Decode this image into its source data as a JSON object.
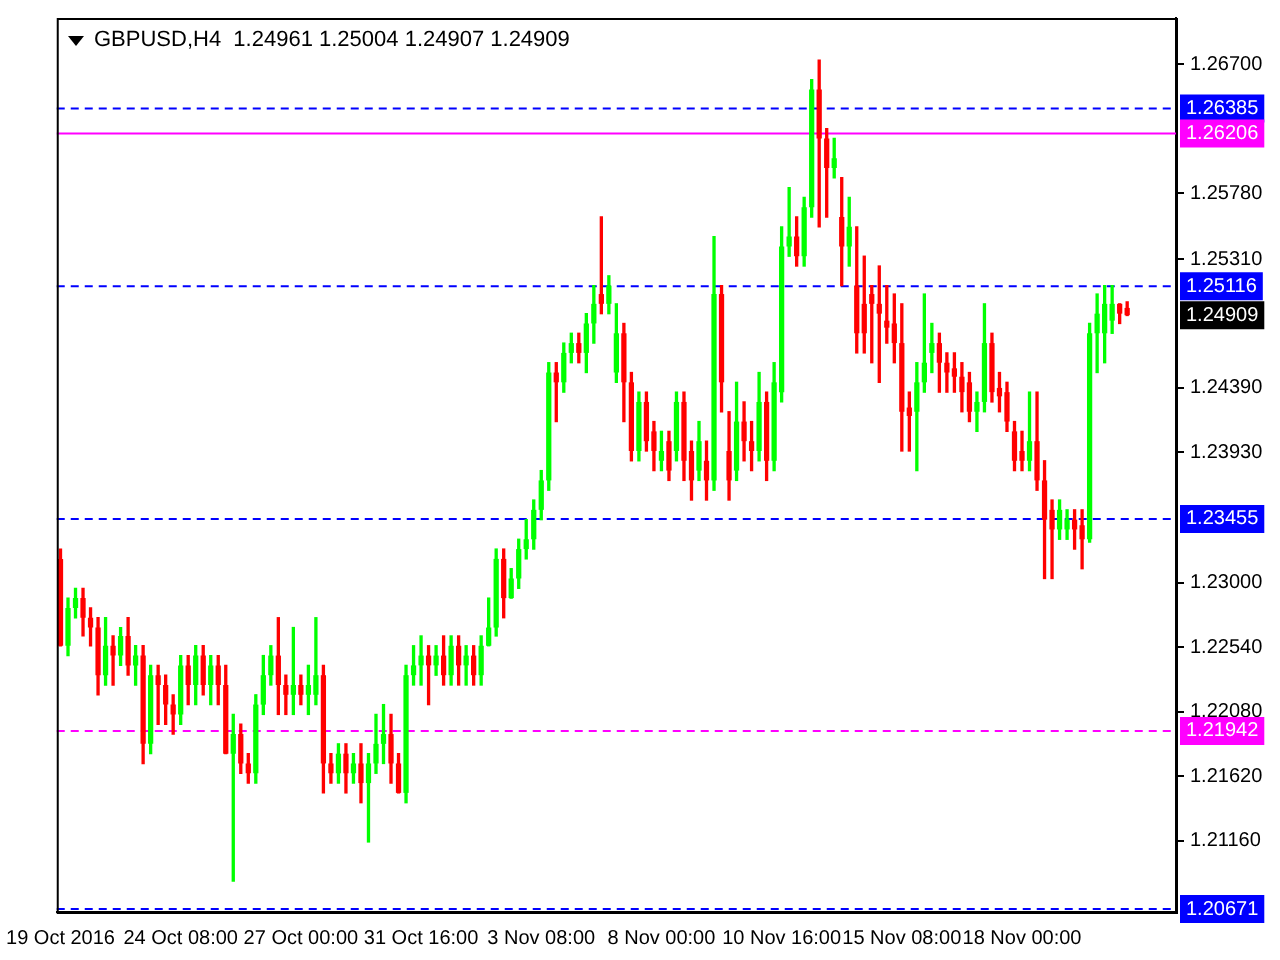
{
  "chart_data": {
    "type": "candlestick",
    "title": "GBPUSD,H4  1.24961 1.25004 1.24907 1.24909",
    "categories": [
      "19 Oct 2016",
      null,
      null,
      null,
      null,
      null,
      null,
      null,
      null,
      null,
      null,
      null,
      null,
      null,
      null,
      null,
      "24 Oct 08:00",
      null,
      null,
      null,
      null,
      null,
      null,
      null,
      null,
      null,
      null,
      null,
      null,
      null,
      null,
      null,
      "27 Oct 00:00",
      null,
      null,
      null,
      null,
      null,
      null,
      null,
      null,
      null,
      null,
      null,
      null,
      null,
      null,
      null,
      "31 Oct 16:00",
      null,
      null,
      null,
      null,
      null,
      null,
      null,
      null,
      null,
      null,
      null,
      null,
      null,
      null,
      null,
      "3 Nov 08:00",
      null,
      null,
      null,
      null,
      null,
      null,
      null,
      null,
      null,
      null,
      null,
      null,
      null,
      null,
      null,
      "8 Nov 00:00",
      null,
      null,
      null,
      null,
      null,
      null,
      null,
      null,
      null,
      null,
      null,
      null,
      null,
      null,
      null,
      "10 Nov 16:00",
      null,
      null,
      null,
      null,
      null,
      null,
      null,
      null,
      null,
      null,
      null,
      null,
      null,
      null,
      null,
      "15 Nov 08:00",
      null,
      null,
      null,
      null,
      null,
      null,
      null,
      null,
      null,
      null,
      null,
      null,
      null,
      null,
      null,
      "18 Nov 00:00",
      null,
      null,
      null,
      null,
      null,
      null,
      null,
      null,
      null,
      null,
      null,
      null,
      null,
      null,
      null,
      null,
      null,
      null,
      null,
      null
    ],
    "ohlc": [
      [
        1.2317,
        1.2324,
        1.2255,
        1.2255
      ],
      [
        1.2255,
        1.2289,
        1.2248,
        1.2282
      ],
      [
        1.2282,
        1.2296,
        1.2275,
        1.2289
      ],
      [
        1.2289,
        1.2296,
        1.2262,
        1.2275
      ],
      [
        1.2275,
        1.2282,
        1.2255,
        1.2268
      ],
      [
        1.2268,
        1.2275,
        1.222,
        1.2234
      ],
      [
        1.2234,
        1.2275,
        1.2227,
        1.2255
      ],
      [
        1.2255,
        1.2262,
        1.2227,
        1.2248
      ],
      [
        1.2248,
        1.2268,
        1.2241,
        1.2262
      ],
      [
        1.2262,
        1.2275,
        1.2234,
        1.2241
      ],
      [
        1.2241,
        1.2255,
        1.2227,
        1.2248
      ],
      [
        1.2248,
        1.2255,
        1.2171,
        1.2185
      ],
      [
        1.2185,
        1.2241,
        1.2178,
        1.2234
      ],
      [
        1.2234,
        1.2241,
        1.2199,
        1.2227
      ],
      [
        1.2227,
        1.2234,
        1.2199,
        1.2213
      ],
      [
        1.2213,
        1.222,
        1.2192,
        1.2206
      ],
      [
        1.2206,
        1.2248,
        1.2199,
        1.2241
      ],
      [
        1.2241,
        1.2248,
        1.2213,
        1.2227
      ],
      [
        1.2227,
        1.2255,
        1.2213,
        1.2248
      ],
      [
        1.2248,
        1.2255,
        1.222,
        1.2227
      ],
      [
        1.2227,
        1.2248,
        1.2213,
        1.2241
      ],
      [
        1.2241,
        1.2248,
        1.2213,
        1.2227
      ],
      [
        1.2227,
        1.2241,
        1.2178,
        1.2178
      ],
      [
        1.2178,
        1.2206,
        1.2087,
        1.2192
      ],
      [
        1.2192,
        1.2199,
        1.2164,
        1.2171
      ],
      [
        1.2171,
        1.2178,
        1.2157,
        1.2164
      ],
      [
        1.2164,
        1.222,
        1.2157,
        1.2213
      ],
      [
        1.2213,
        1.2248,
        1.2206,
        1.2234
      ],
      [
        1.2234,
        1.2255,
        1.2227,
        1.2248
      ],
      [
        1.2248,
        1.2275,
        1.2206,
        1.2227
      ],
      [
        1.2227,
        1.2234,
        1.2206,
        1.222
      ],
      [
        1.222,
        1.2268,
        1.2206,
        1.2227
      ],
      [
        1.2227,
        1.2234,
        1.2213,
        1.222
      ],
      [
        1.222,
        1.2241,
        1.2206,
        1.2227
      ],
      [
        1.222,
        1.2275,
        1.2213,
        1.2234
      ],
      [
        1.2234,
        1.2241,
        1.215,
        1.2171
      ],
      [
        1.2171,
        1.2178,
        1.2157,
        1.2164
      ],
      [
        1.2164,
        1.2185,
        1.2157,
        1.2178
      ],
      [
        1.2178,
        1.2185,
        1.215,
        1.2164
      ],
      [
        1.2164,
        1.2178,
        1.2157,
        1.2171
      ],
      [
        1.2171,
        1.2185,
        1.2143,
        1.2157
      ],
      [
        1.2157,
        1.2178,
        1.2115,
        1.2171
      ],
      [
        1.2171,
        1.2206,
        1.2164,
        1.2185
      ],
      [
        1.2185,
        1.2213,
        1.2171,
        1.2192
      ],
      [
        1.2192,
        1.2206,
        1.2157,
        1.2171
      ],
      [
        1.2171,
        1.2178,
        1.215,
        1.215
      ],
      [
        1.215,
        1.2241,
        1.2143,
        1.2234
      ],
      [
        1.2234,
        1.2255,
        1.2227,
        1.2241
      ],
      [
        1.2241,
        1.2262,
        1.2227,
        1.2248
      ],
      [
        1.2248,
        1.2255,
        1.2213,
        1.2241
      ],
      [
        1.2241,
        1.2255,
        1.2234,
        1.2248
      ],
      [
        1.2248,
        1.2262,
        1.2227,
        1.2234
      ],
      [
        1.2234,
        1.2262,
        1.2227,
        1.2255
      ],
      [
        1.2255,
        1.2262,
        1.2227,
        1.2241
      ],
      [
        1.2241,
        1.2255,
        1.2227,
        1.2248
      ],
      [
        1.2248,
        1.2255,
        1.2227,
        1.2234
      ],
      [
        1.2234,
        1.2262,
        1.2227,
        1.2255
      ],
      [
        1.2255,
        1.2289,
        1.2255,
        1.2268
      ],
      [
        1.2268,
        1.2324,
        1.2262,
        1.2317
      ],
      [
        1.2317,
        1.2324,
        1.2275,
        1.2289
      ],
      [
        1.2289,
        1.231,
        1.2289,
        1.2303
      ],
      [
        1.2303,
        1.2331,
        1.2296,
        1.2324
      ],
      [
        1.2324,
        1.2345,
        1.2317,
        1.2331
      ],
      [
        1.2331,
        1.2359,
        1.2324,
        1.2352
      ],
      [
        1.2352,
        1.238,
        1.2345,
        1.2373
      ],
      [
        1.2373,
        1.2457,
        1.2366,
        1.245
      ],
      [
        1.245,
        1.2457,
        1.2415,
        1.2443
      ],
      [
        1.2443,
        1.2471,
        1.2436,
        1.2464
      ],
      [
        1.2464,
        1.2478,
        1.2457,
        1.2471
      ],
      [
        1.2471,
        1.2478,
        1.2457,
        1.2464
      ],
      [
        1.2464,
        1.2492,
        1.245,
        1.2485
      ],
      [
        1.2485,
        1.2512,
        1.2471,
        1.2499
      ],
      [
        1.2506,
        1.2561,
        1.2492,
        1.2499
      ],
      [
        1.2499,
        1.2519,
        1.2492,
        1.2512
      ],
      [
        1.245,
        1.2499,
        1.2443,
        1.2478
      ],
      [
        1.2478,
        1.2485,
        1.2415,
        1.2443
      ],
      [
        1.2443,
        1.245,
        1.2387,
        1.2394
      ],
      [
        1.2394,
        1.2436,
        1.2387,
        1.2429
      ],
      [
        1.2429,
        1.2436,
        1.2394,
        1.2401
      ],
      [
        1.2408,
        1.2415,
        1.238,
        1.2394
      ],
      [
        1.2387,
        1.2408,
        1.238,
        1.2394
      ],
      [
        1.2401,
        1.2408,
        1.2373,
        1.238
      ],
      [
        1.2394,
        1.2436,
        1.2387,
        1.2429
      ],
      [
        1.2429,
        1.2436,
        1.2373,
        1.2387
      ],
      [
        1.2394,
        1.2401,
        1.2359,
        1.2373
      ],
      [
        1.238,
        1.2415,
        1.2373,
        1.2401
      ],
      [
        1.2387,
        1.2401,
        1.2359,
        1.2373
      ],
      [
        1.2373,
        1.2547,
        1.2366,
        1.2506
      ],
      [
        1.2506,
        1.2512,
        1.2422,
        1.2443
      ],
      [
        1.2394,
        1.2422,
        1.2359,
        1.2373
      ],
      [
        1.238,
        1.2443,
        1.2373,
        1.2415
      ],
      [
        1.2415,
        1.2429,
        1.2387,
        1.2401
      ],
      [
        1.2401,
        1.2415,
        1.238,
        1.2394
      ],
      [
        1.2394,
        1.245,
        1.2387,
        1.2429
      ],
      [
        1.2429,
        1.2436,
        1.2373,
        1.2387
      ],
      [
        1.2387,
        1.2457,
        1.238,
        1.2443
      ],
      [
        1.2436,
        1.2554,
        1.2429,
        1.254
      ],
      [
        1.254,
        1.2582,
        1.2533,
        1.2547
      ],
      [
        1.2547,
        1.2561,
        1.2526,
        1.2533
      ],
      [
        1.2533,
        1.2575,
        1.2526,
        1.2568
      ],
      [
        1.2568,
        1.2659,
        1.2561,
        1.2652
      ],
      [
        1.2652,
        1.2673,
        1.2554,
        1.2617
      ],
      [
        1.2617,
        1.2624,
        1.2561,
        1.2596
      ],
      [
        1.2596,
        1.2617,
        1.2589,
        1.2603
      ],
      [
        1.2561,
        1.2589,
        1.2512,
        1.254
      ],
      [
        1.254,
        1.2575,
        1.2526,
        1.2554
      ],
      [
        1.2512,
        1.2554,
        1.2464,
        1.2478
      ],
      [
        1.2499,
        1.2533,
        1.2464,
        1.2478
      ],
      [
        1.2506,
        1.2512,
        1.2457,
        1.2499
      ],
      [
        1.2499,
        1.2526,
        1.2443,
        1.2492
      ],
      [
        1.2487,
        1.2512,
        1.2471,
        1.2482
      ],
      [
        1.2485,
        1.2506,
        1.2457,
        1.2471
      ],
      [
        1.2471,
        1.2499,
        1.2394,
        1.2422
      ],
      [
        1.2425,
        1.2436,
        1.2394,
        1.2419
      ],
      [
        1.2422,
        1.2457,
        1.238,
        1.2443
      ],
      [
        1.2443,
        1.2506,
        1.2436,
        1.2457
      ],
      [
        1.2464,
        1.2485,
        1.245,
        1.2471
      ],
      [
        1.2471,
        1.2478,
        1.2436,
        1.2457
      ],
      [
        1.2457,
        1.2464,
        1.2436,
        1.245
      ],
      [
        1.2453,
        1.2464,
        1.2436,
        1.2447
      ],
      [
        1.2447,
        1.2457,
        1.2422,
        1.2436
      ],
      [
        1.2443,
        1.245,
        1.2415,
        1.2422
      ],
      [
        1.2422,
        1.2436,
        1.2408,
        1.2429
      ],
      [
        1.2429,
        1.2499,
        1.2422,
        1.2471
      ],
      [
        1.2471,
        1.2478,
        1.2429,
        1.2436
      ],
      [
        1.2439,
        1.245,
        1.2422,
        1.2433
      ],
      [
        1.2436,
        1.2443,
        1.2408,
        1.2415
      ],
      [
        1.2408,
        1.2415,
        1.238,
        1.2387
      ],
      [
        1.2394,
        1.2408,
        1.238,
        1.2387
      ],
      [
        1.2387,
        1.2436,
        1.238,
        1.2401
      ],
      [
        1.2401,
        1.2436,
        1.2366,
        1.2373
      ],
      [
        1.2373,
        1.2387,
        1.2303,
        1.2345
      ],
      [
        1.2352,
        1.2359,
        1.2303,
        1.2338
      ],
      [
        1.2338,
        1.2359,
        1.2331,
        1.2352
      ],
      [
        1.2338,
        1.2352,
        1.2331,
        1.2345
      ],
      [
        1.2345,
        1.2352,
        1.2324,
        1.2338
      ],
      [
        1.2341,
        1.2352,
        1.231,
        1.2331
      ],
      [
        1.2331,
        1.2485,
        1.2329,
        1.2478
      ],
      [
        1.2478,
        1.2506,
        1.245,
        1.2492
      ],
      [
        1.2478,
        1.2512,
        1.2457,
        1.2499
      ],
      [
        1.2487,
        1.2512,
        1.2478,
        1.2499
      ],
      [
        1.2499,
        1.2499,
        1.2485,
        1.2492
      ],
      [
        1.24961,
        1.25004,
        1.24907,
        1.24909
      ],
      null,
      null,
      null,
      null,
      null,
      null
    ],
    "colors": [
      "#ff0000",
      "#00ff00",
      "#00ff00",
      "#ff0000",
      "#ff0000",
      "#ff0000",
      "#00ff00",
      "#ff0000",
      "#00ff00",
      "#ff0000",
      "#00ff00",
      "#ff0000",
      "#00ff00",
      "#ff0000",
      "#ff0000",
      "#ff0000",
      "#00ff00",
      "#ff0000",
      "#00ff00",
      "#ff0000",
      "#00ff00",
      "#ff0000",
      "#ff0000",
      "#00ff00",
      "#ff0000",
      "#ff0000",
      "#00ff00",
      "#00ff00",
      "#00ff00",
      "#ff0000",
      "#ff0000",
      "#00ff00",
      "#ff0000",
      "#00ff00",
      "#00ff00",
      "#ff0000",
      "#ff0000",
      "#00ff00",
      "#ff0000",
      "#00ff00",
      "#ff0000",
      "#00ff00",
      "#00ff00",
      "#00ff00",
      "#ff0000",
      "#ff0000",
      "#00ff00",
      "#00ff00",
      "#00ff00",
      "#ff0000",
      "#00ff00",
      "#ff0000",
      "#00ff00",
      "#ff0000",
      "#00ff00",
      "#ff0000",
      "#00ff00",
      "#00ff00",
      "#00ff00",
      "#ff0000",
      "#00ff00",
      "#00ff00",
      "#00ff00",
      "#00ff00",
      "#00ff00",
      "#00ff00",
      "#ff0000",
      "#00ff00",
      "#00ff00",
      "#ff0000",
      "#00ff00",
      "#00ff00",
      "#ff0000",
      "#00ff00",
      "#00ff00",
      "#ff0000",
      "#ff0000",
      "#00ff00",
      "#ff0000",
      "#ff0000",
      "#00ff00",
      "#ff0000",
      "#00ff00",
      "#ff0000",
      "#ff0000",
      "#00ff00",
      "#ff0000",
      "#00ff00",
      "#ff0000",
      "#ff0000",
      "#00ff00",
      "#ff0000",
      "#ff0000",
      "#00ff00",
      "#ff0000",
      "#00ff00",
      "#00ff00",
      "#00ff00",
      "#ff0000",
      "#00ff00",
      "#00ff00",
      "#ff0000",
      "#ff0000",
      "#00ff00",
      "#ff0000",
      "#00ff00",
      "#ff0000",
      "#ff0000",
      "#ff0000",
      "#ff0000",
      "#ff0000",
      "#ff0000",
      "#ff0000",
      "#ff0000",
      "#00ff00",
      "#00ff00",
      "#00ff00",
      "#ff0000",
      "#ff0000",
      "#ff0000",
      "#ff0000",
      "#ff0000",
      "#00ff00",
      "#00ff00",
      "#ff0000",
      "#ff0000",
      "#ff0000",
      "#ff0000",
      "#ff0000",
      "#00ff00",
      "#ff0000",
      "#ff0000",
      "#ff0000",
      "#00ff00",
      "#00ff00",
      "#ff0000",
      "#ff0000",
      "#00ff00",
      "#00ff00",
      "#00ff00",
      "#00ff00",
      "#ff0000",
      "#ff0000",
      null,
      null,
      null,
      null,
      null,
      null
    ],
    "ylim": [
      1.2065,
      1.2703
    ],
    "yticks": [
      {
        "value": 1.267,
        "label": "1.26700"
      },
      {
        "value": 1.2578,
        "label": "1.25780"
      },
      {
        "value": 1.2531,
        "label": "1.25310"
      },
      {
        "value": 1.2439,
        "label": "1.24390"
      },
      {
        "value": 1.2393,
        "label": "1.23930"
      },
      {
        "value": 1.23,
        "label": "1.23000"
      },
      {
        "value": 1.2254,
        "label": "1.22540"
      },
      {
        "value": 1.2208,
        "label": "1.22080"
      },
      {
        "value": 1.2162,
        "label": "1.21620"
      },
      {
        "value": 1.2116,
        "label": "1.21160"
      }
    ],
    "ref_lines": [
      {
        "axis": "y",
        "value": 1.26385,
        "label": "1.26385",
        "color": "#0000ff",
        "line_style": "dashed"
      },
      {
        "axis": "y",
        "value": 1.26206,
        "label": "1.26206",
        "color": "#ff00ff",
        "line_style": "solid"
      },
      {
        "axis": "y",
        "value": 1.25116,
        "label": "1.25116",
        "color": "#0000ff",
        "line_style": "dashed"
      },
      {
        "axis": "y",
        "value": 1.23455,
        "label": "1.23455",
        "color": "#0000ff",
        "line_style": "dashed"
      },
      {
        "axis": "y",
        "value": 1.21942,
        "label": "1.21942",
        "color": "#ff00ff",
        "line_style": "dashed"
      },
      {
        "axis": "y",
        "value": 1.20671,
        "label": "1.20671",
        "color": "#0000ff",
        "line_style": "dashed"
      }
    ],
    "annotations": [
      "1.24909"
    ],
    "grid": false,
    "legend": false
  }
}
